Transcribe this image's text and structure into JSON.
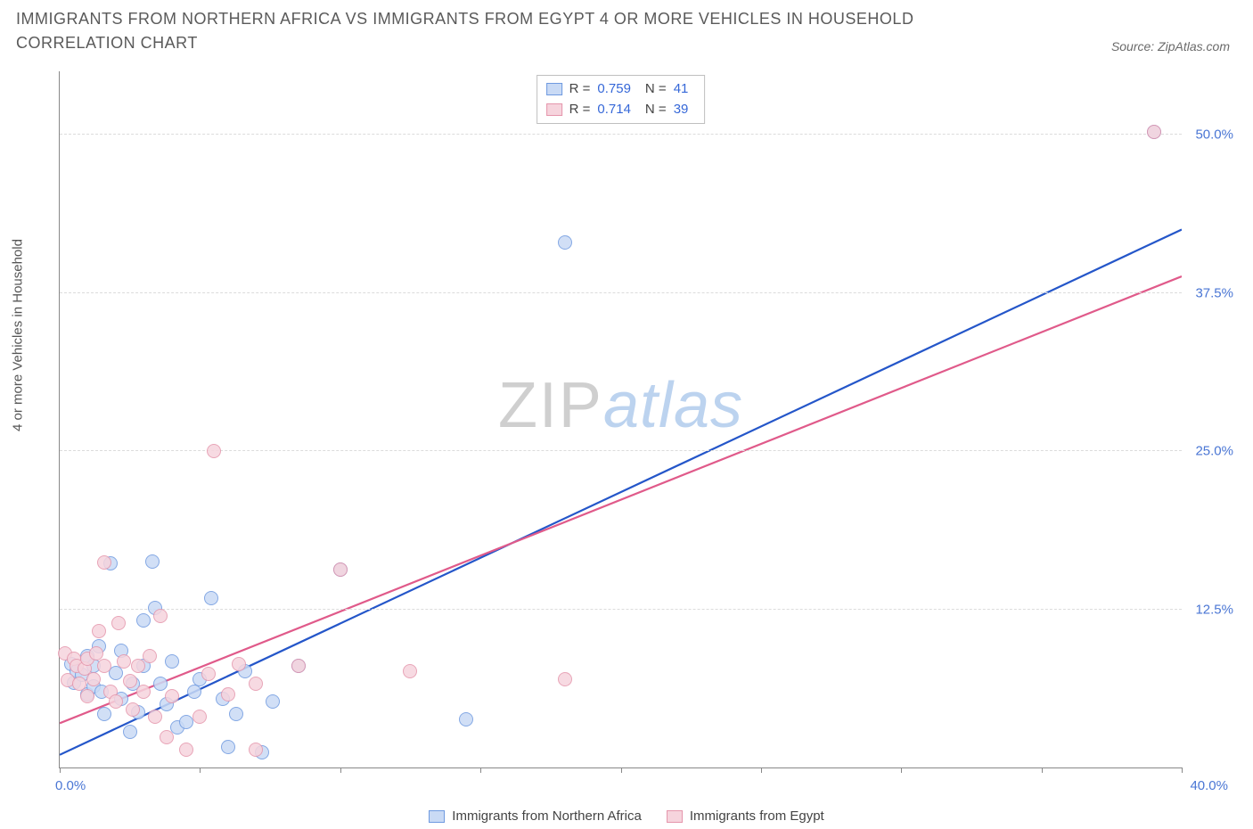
{
  "title": "IMMIGRANTS FROM NORTHERN AFRICA VS IMMIGRANTS FROM EGYPT 4 OR MORE VEHICLES IN HOUSEHOLD CORRELATION CHART",
  "source": "Source: ZipAtlas.com",
  "y_axis_label": "4 or more Vehicles in Household",
  "watermark_a": "ZIP",
  "watermark_b": "atlas",
  "chart": {
    "type": "scatter",
    "xlim": [
      0,
      40
    ],
    "ylim": [
      0,
      55
    ],
    "x_tick_step": 5,
    "y_ticks": [
      12.5,
      25.0,
      37.5,
      50.0
    ],
    "y_tick_labels": [
      "12.5%",
      "25.0%",
      "37.5%",
      "50.0%"
    ],
    "x_min_label": "0.0%",
    "x_max_label": "40.0%",
    "grid_color": "#dcdcdc",
    "axis_color": "#888888",
    "background_color": "#ffffff",
    "marker_radius": 8,
    "marker_stroke_width": 1.2,
    "line_width": 2.2
  },
  "series": [
    {
      "key": "northern_africa",
      "label": "Immigrants from Northern Africa",
      "fill": "#c9daf5",
      "stroke": "#6f9ae0",
      "line_color": "#2456c9",
      "R": "0.759",
      "N": "41",
      "trend": {
        "x1": 0,
        "y1": 1.0,
        "x2": 40,
        "y2": 42.5
      },
      "points": [
        [
          0.4,
          8.2
        ],
        [
          0.5,
          6.7
        ],
        [
          0.6,
          7.6
        ],
        [
          0.8,
          7.3
        ],
        [
          1.0,
          8.8
        ],
        [
          1.0,
          5.8
        ],
        [
          1.2,
          6.4
        ],
        [
          1.2,
          8.0
        ],
        [
          1.4,
          9.6
        ],
        [
          1.5,
          6.0
        ],
        [
          1.6,
          4.2
        ],
        [
          1.8,
          16.1
        ],
        [
          2.0,
          7.5
        ],
        [
          2.2,
          5.4
        ],
        [
          2.2,
          9.2
        ],
        [
          2.5,
          2.8
        ],
        [
          2.6,
          6.6
        ],
        [
          2.8,
          4.4
        ],
        [
          3.0,
          8.0
        ],
        [
          3.0,
          11.6
        ],
        [
          3.3,
          16.3
        ],
        [
          3.4,
          12.6
        ],
        [
          3.6,
          6.6
        ],
        [
          3.8,
          5.0
        ],
        [
          4.0,
          8.4
        ],
        [
          4.2,
          3.2
        ],
        [
          4.5,
          3.6
        ],
        [
          4.8,
          6.0
        ],
        [
          5.0,
          7.0
        ],
        [
          5.4,
          13.4
        ],
        [
          5.8,
          5.4
        ],
        [
          6.0,
          1.6
        ],
        [
          6.3,
          4.2
        ],
        [
          6.6,
          7.6
        ],
        [
          7.2,
          1.2
        ],
        [
          7.6,
          5.2
        ],
        [
          8.5,
          8.0
        ],
        [
          10.0,
          15.6
        ],
        [
          14.5,
          3.8
        ],
        [
          18.0,
          41.5
        ],
        [
          39.0,
          50.2
        ]
      ]
    },
    {
      "key": "egypt",
      "label": "Immigrants from Egypt",
      "fill": "#f6d4dd",
      "stroke": "#e596ac",
      "line_color": "#e05a8a",
      "R": "0.714",
      "N": "39",
      "trend": {
        "x1": 0,
        "y1": 3.5,
        "x2": 40,
        "y2": 38.8
      },
      "points": [
        [
          0.2,
          9.0
        ],
        [
          0.3,
          6.9
        ],
        [
          0.5,
          8.6
        ],
        [
          0.6,
          8.0
        ],
        [
          0.7,
          6.6
        ],
        [
          0.9,
          7.8
        ],
        [
          1.0,
          8.6
        ],
        [
          1.0,
          5.6
        ],
        [
          1.2,
          7.0
        ],
        [
          1.3,
          9.0
        ],
        [
          1.4,
          10.8
        ],
        [
          1.6,
          8.0
        ],
        [
          1.6,
          16.2
        ],
        [
          1.8,
          6.0
        ],
        [
          2.0,
          5.2
        ],
        [
          2.1,
          11.4
        ],
        [
          2.3,
          8.4
        ],
        [
          2.5,
          6.8
        ],
        [
          2.6,
          4.6
        ],
        [
          2.8,
          8.0
        ],
        [
          3.0,
          6.0
        ],
        [
          3.2,
          8.8
        ],
        [
          3.4,
          4.0
        ],
        [
          3.6,
          12.0
        ],
        [
          3.8,
          2.4
        ],
        [
          4.0,
          5.6
        ],
        [
          4.5,
          1.4
        ],
        [
          5.0,
          4.0
        ],
        [
          5.3,
          7.4
        ],
        [
          5.5,
          25.0
        ],
        [
          6.0,
          5.8
        ],
        [
          6.4,
          8.2
        ],
        [
          7.0,
          1.4
        ],
        [
          7.0,
          6.6
        ],
        [
          8.5,
          8.0
        ],
        [
          10.0,
          15.6
        ],
        [
          12.5,
          7.6
        ],
        [
          18.0,
          7.0
        ],
        [
          39.0,
          50.2
        ]
      ]
    }
  ],
  "stats_labels": {
    "R": "R =",
    "N": "N ="
  },
  "bottom_legend": [
    {
      "series": 0
    },
    {
      "series": 1
    }
  ]
}
